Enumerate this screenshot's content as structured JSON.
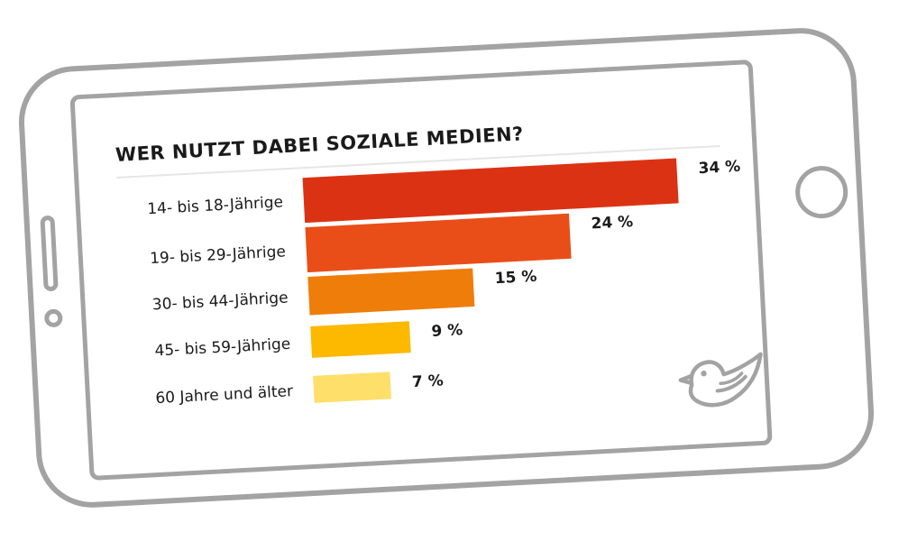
{
  "chart_data": {
    "type": "bar",
    "orientation": "horizontal",
    "title": "WER NUTZT DABEI SOZIALE MEDIEN?",
    "categories": [
      "14- bis 18-Jährige",
      "19- bis 29-Jährige",
      "30- bis 44-Jährige",
      "45- bis 59-Jährige",
      "60 Jahre und älter"
    ],
    "values": [
      34,
      24,
      15,
      9,
      7
    ],
    "value_labels": [
      "34 %",
      "24 %",
      "15 %",
      "9 %",
      "7 %"
    ],
    "unit": "%",
    "xlim": [
      0,
      34
    ],
    "grid": false,
    "legend": "none",
    "colors": [
      "#dc3214",
      "#e94e18",
      "#ef7d0a",
      "#fcb900",
      "#fedf6a"
    ]
  },
  "decoration": {
    "logo_icon": "bird-icon",
    "frame_color": "#a3a3a3"
  }
}
